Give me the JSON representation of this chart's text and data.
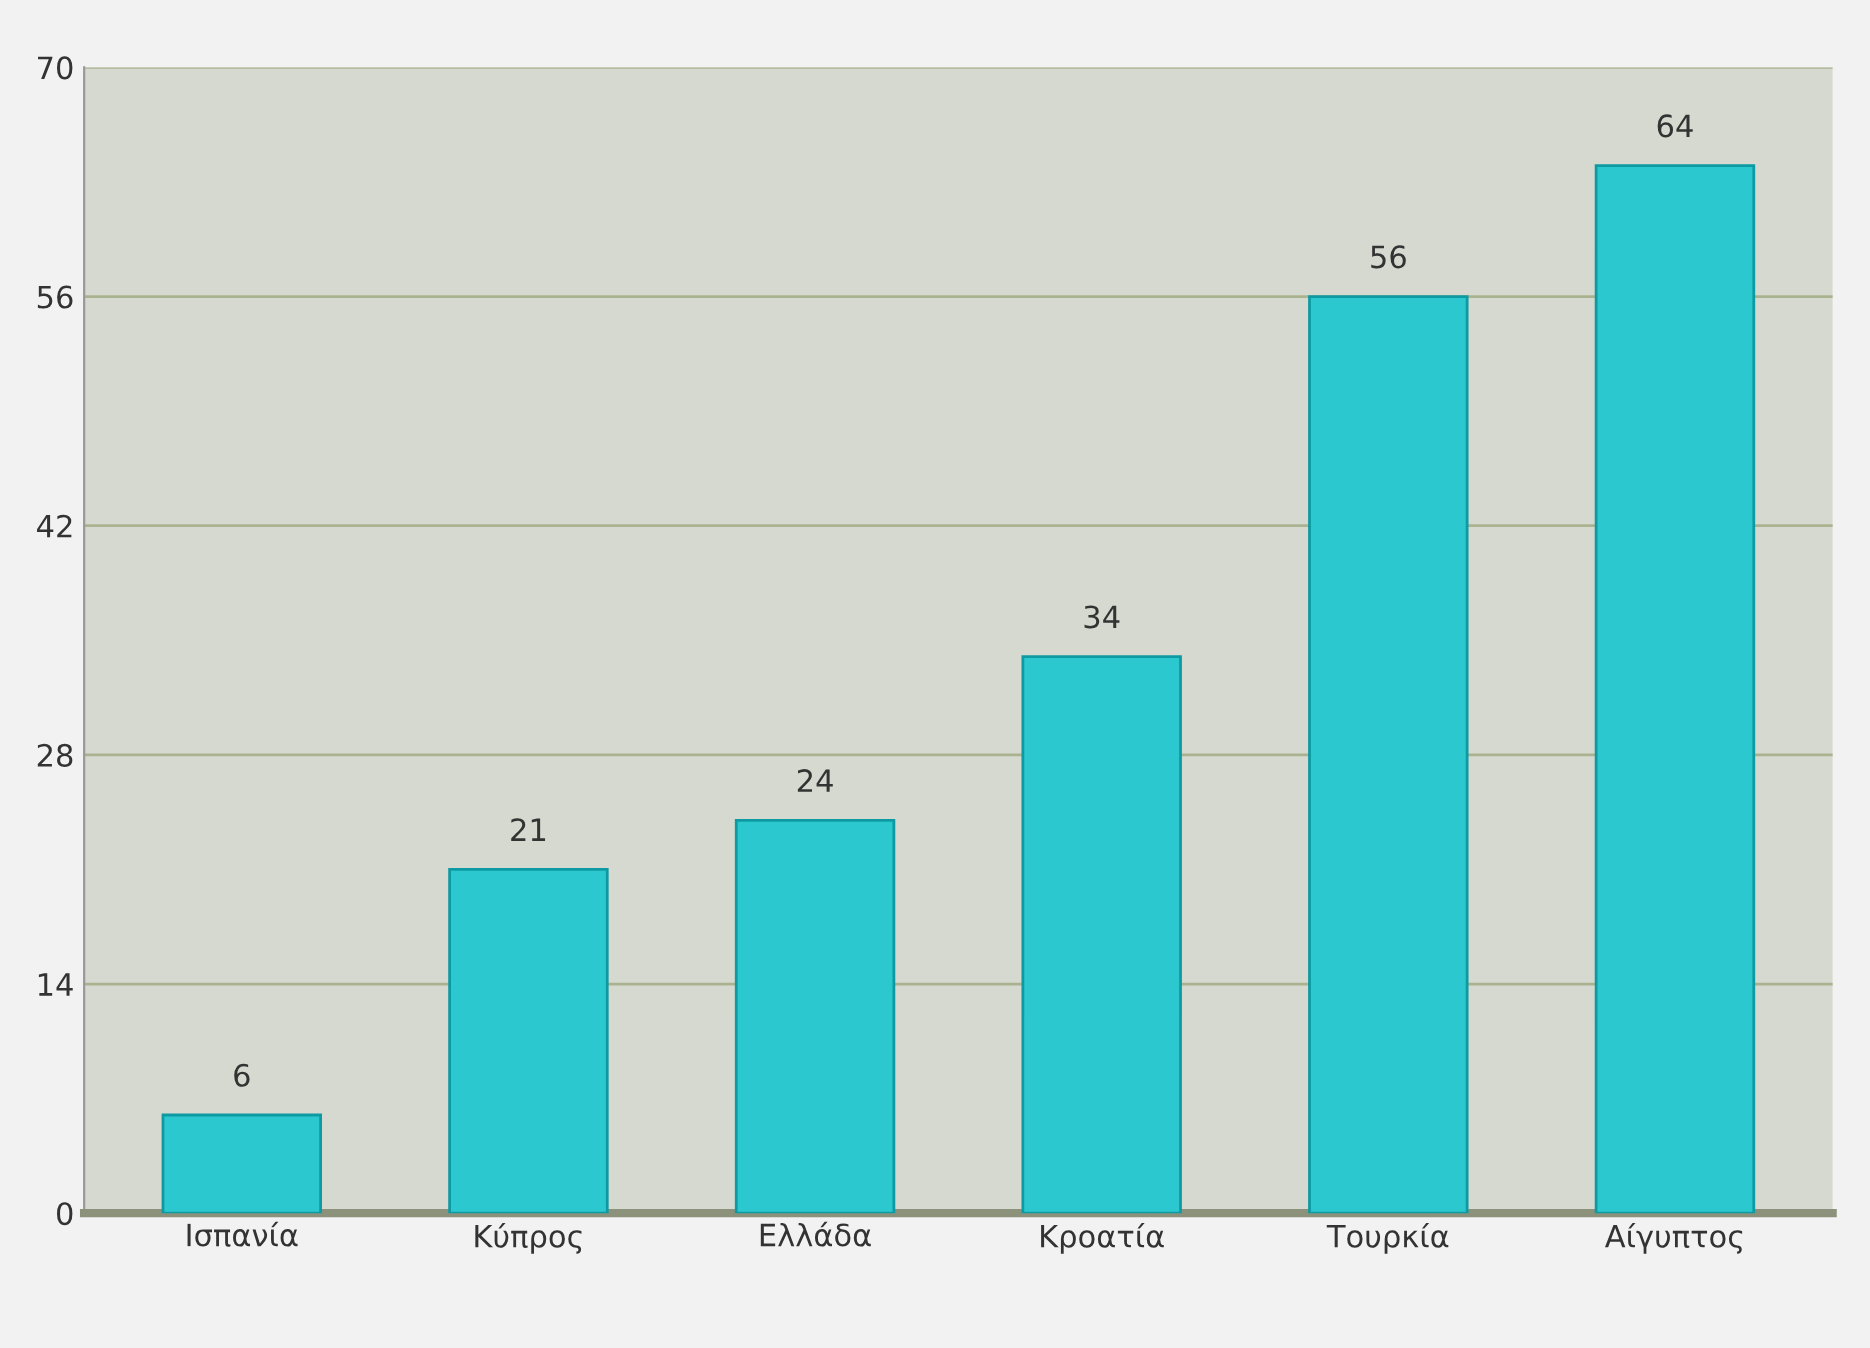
{
  "chart_data": {
    "type": "bar",
    "categories": [
      "Ισπανία",
      "Κύπρος",
      "Ελλάδα",
      "Κροατία",
      "Τουρκία",
      "Αίγυπτος"
    ],
    "values": [
      6,
      21,
      24,
      34,
      56,
      64
    ],
    "color": "#2cc8d0",
    "ylim": [
      0,
      70
    ],
    "yticks": [
      0,
      14,
      28,
      42,
      56,
      70
    ],
    "grid": "y",
    "data_labels": true
  }
}
